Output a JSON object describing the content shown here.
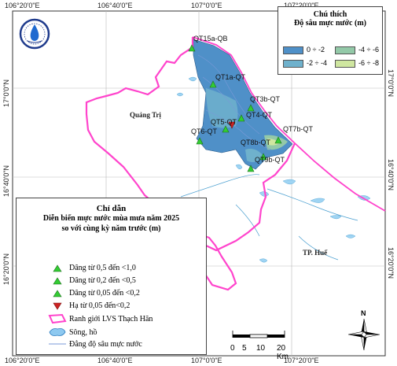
{
  "map": {
    "coords_top": [
      "106°20'0\"E",
      "106°40'0\"E",
      "107°0'0\"E",
      "107°20'0\"E"
    ],
    "coords_bottom": [
      "106°20'0\"E",
      "106°40'0\"E",
      "107°0'0\"E",
      "107°20'0\"E"
    ],
    "coords_left": [
      "17°0'0\"N",
      "16°40'0\"N",
      "16°20'0\"N"
    ],
    "coords_right": [
      "17°0'0\"N",
      "16°40'0\"N",
      "16°20'0\"N"
    ],
    "places": {
      "quang_tri": "Quảng Trị",
      "hue": "TP. Huế"
    },
    "wells": [
      {
        "label": "QT15a-QB",
        "status": "rise_0_5_1_0"
      },
      {
        "label": "QT1a-QT",
        "status": "rise_0_5_1_0"
      },
      {
        "label": "QT3b-QT",
        "status": "rise_0_5_1_0"
      },
      {
        "label": "QT4-QT",
        "status": "rise_0_5_1_0"
      },
      {
        "label": "QT5-QT",
        "status": "fall_0_05_0_2"
      },
      {
        "label": "QT6-QT",
        "status": "rise_0_5_1_0"
      },
      {
        "label": "QT7b-QT",
        "status": "rise_0_5_1_0"
      },
      {
        "label": "QT8b-QT",
        "status": "rise_0_5_1_0"
      },
      {
        "label": "QT9b-QT",
        "status": "rise_0_5_1_0"
      }
    ]
  },
  "depth_legend": {
    "title": "Chú thích",
    "subtitle": "Độ sâu mực nước (m)",
    "classes": [
      {
        "label": "0 ÷ -2",
        "color": "#4f90c8"
      },
      {
        "label": "-4 ÷ -6",
        "color": "#93c9a8"
      },
      {
        "label": "-2 ÷ -4",
        "color": "#6fb1cc"
      },
      {
        "label": "-6 ÷ -8",
        "color": "#cfe6a0"
      }
    ]
  },
  "main_legend": {
    "title": "Chỉ dẫn",
    "subtitle_1": "Diễn biến mực nước mùa mưa năm 2025",
    "subtitle_2": "so với cùng kỳ năm trước (m)",
    "items": [
      {
        "label": "Dâng từ 0,5 đến <1,0",
        "symbol": "triangle-up",
        "color": "#33cc33"
      },
      {
        "label": "Dâng từ 0,2 đến <0,5",
        "symbol": "triangle-up",
        "color": "#33cc33"
      },
      {
        "label": "Dâng từ 0,05 đến <0,2",
        "symbol": "triangle-up",
        "color": "#33cc33"
      },
      {
        "label": "Hạ từ 0,05 đến<0,2",
        "symbol": "triangle-down",
        "color": "#cc2222"
      },
      {
        "label": "Ranh giới LVS Thạch Hãn",
        "symbol": "boundary",
        "color": "#ff44cc"
      },
      {
        "label": "Sông, hồ",
        "symbol": "water",
        "color": "#8ec9f0"
      },
      {
        "label": "Đẳng độ sâu mực nước",
        "symbol": "line",
        "color": "#7a9ad8"
      }
    ]
  },
  "scalebar": {
    "ticks": [
      "0",
      "5",
      "10",
      "20 Km"
    ]
  },
  "north_arrow": {
    "label": "N"
  }
}
